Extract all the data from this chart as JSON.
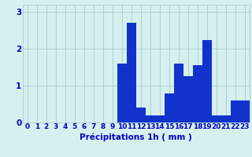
{
  "hours": [
    0,
    1,
    2,
    3,
    4,
    5,
    6,
    7,
    8,
    9,
    10,
    11,
    12,
    13,
    14,
    15,
    16,
    17,
    18,
    19,
    20,
    21,
    22,
    23
  ],
  "values": [
    0,
    0,
    0,
    0,
    0,
    0,
    0,
    0,
    0,
    0,
    1.6,
    2.7,
    0.4,
    0.2,
    0.2,
    0.8,
    1.6,
    1.25,
    1.55,
    2.25,
    0.2,
    0.2,
    0.6,
    0.6
  ],
  "bar_color": "#1133cc",
  "background_color": "#d6f0f0",
  "grid_color": "#a8cccc",
  "text_color": "#0000bb",
  "xlabel": "Précipitations 1h ( mm )",
  "ylim": [
    0,
    3.2
  ],
  "yticks": [
    0,
    1,
    2,
    3
  ],
  "label_fontsize": 7.5,
  "tick_fontsize": 6.5
}
